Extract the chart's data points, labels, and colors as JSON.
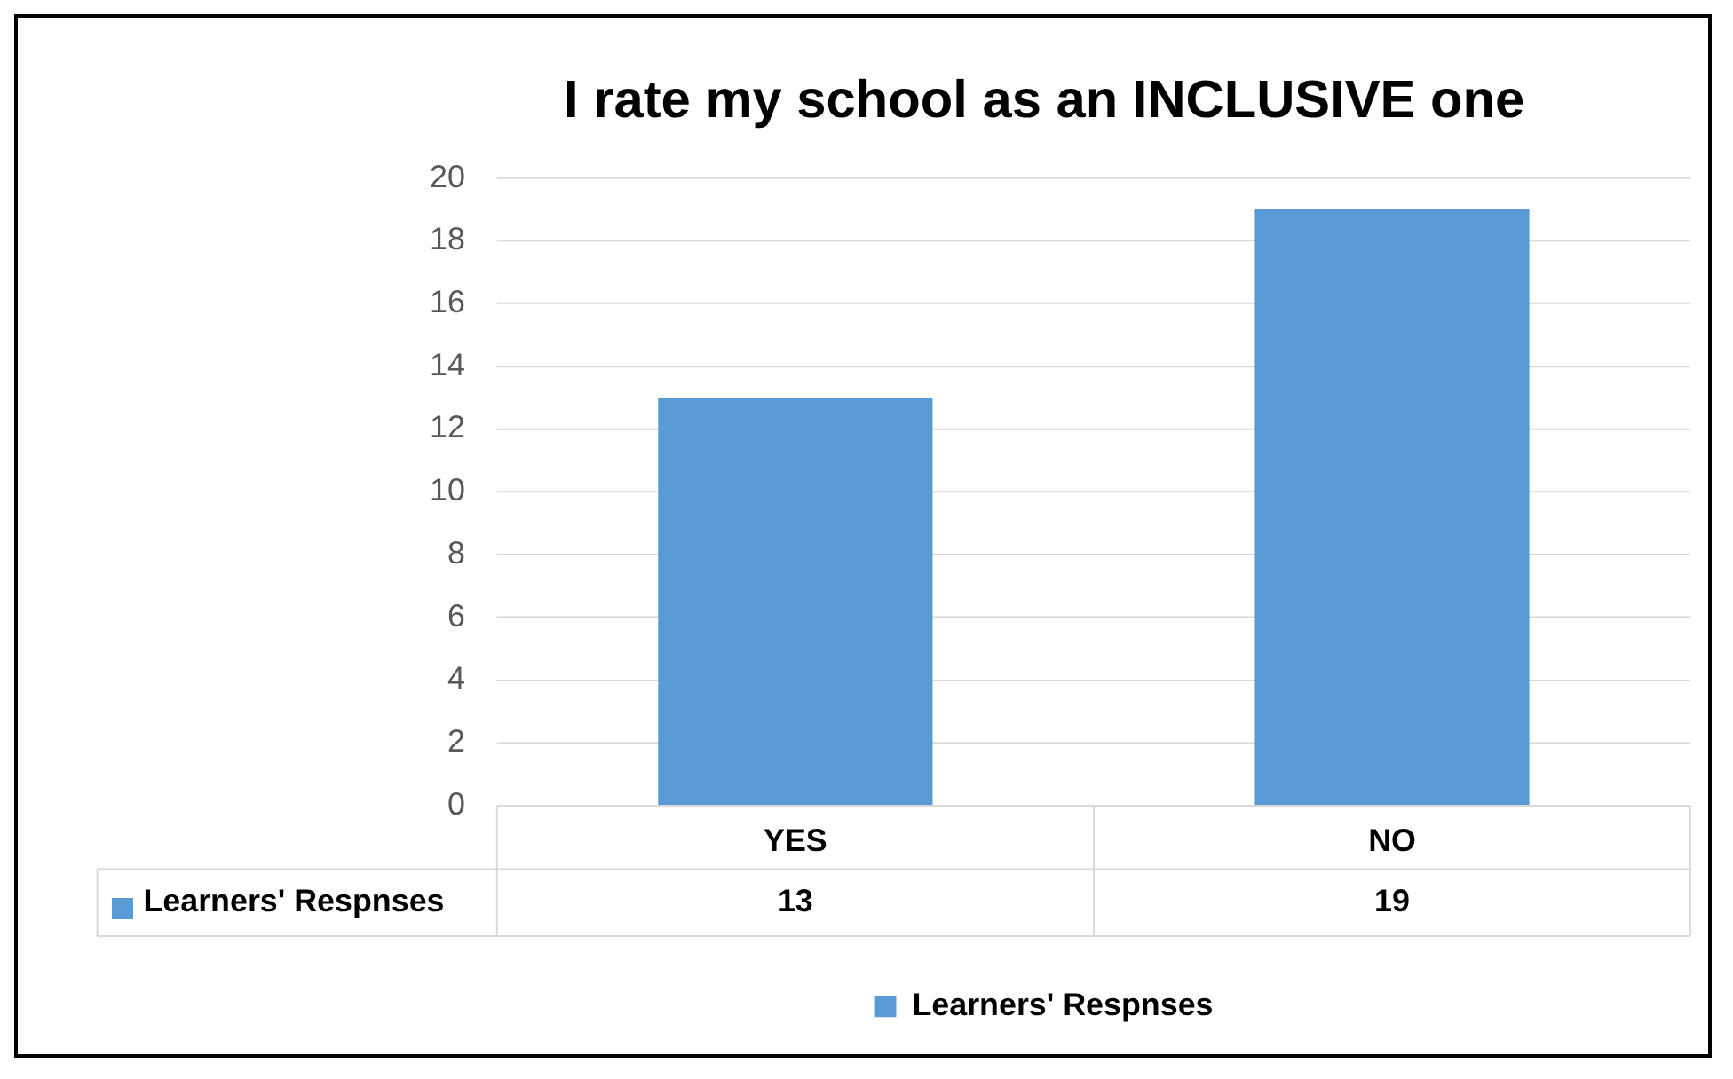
{
  "chart_data": {
    "type": "bar",
    "title": "I rate my school as an INCLUSIVE one",
    "categories": [
      "YES",
      "NO"
    ],
    "series": [
      {
        "name": "Learners' Respnses",
        "color": "#5b9bd5",
        "values": [
          13,
          19
        ]
      }
    ],
    "ylim": [
      0,
      20
    ],
    "yticks": [
      0,
      2,
      4,
      6,
      8,
      10,
      12,
      14,
      16,
      18,
      20
    ],
    "grid": "y",
    "legend": "bottom",
    "data_labels": true
  }
}
